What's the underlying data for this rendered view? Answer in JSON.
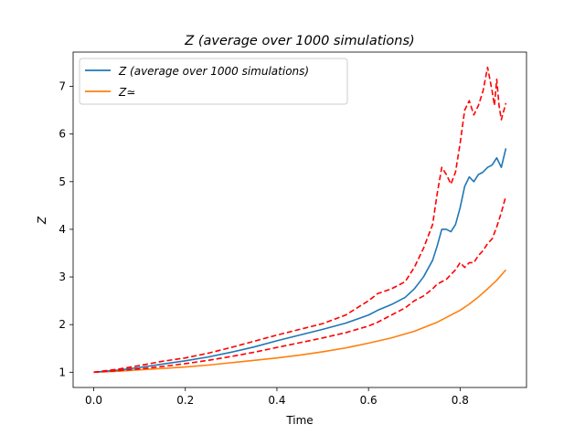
{
  "chart_data": {
    "type": "line",
    "title": "Z (average over 1000 simulations)",
    "xlabel": "Time",
    "ylabel": "Z",
    "xlim": [
      -0.045,
      0.945
    ],
    "ylim": [
      0.68,
      7.72
    ],
    "xticks": [
      0.0,
      0.2,
      0.4,
      0.6,
      0.8
    ],
    "yticks": [
      1,
      2,
      3,
      4,
      5,
      6,
      7
    ],
    "xtick_labels": [
      "0.0",
      "0.2",
      "0.4",
      "0.6",
      "0.8"
    ],
    "ytick_labels": [
      "1",
      "2",
      "3",
      "4",
      "5",
      "6",
      "7"
    ],
    "grid": false,
    "legend_position": "upper-left",
    "legend": [
      {
        "label": "Z (average over 1000 simulations)",
        "color": "#1f77b4"
      },
      {
        "label": "Z≃",
        "color": "#ff7f0e"
      }
    ],
    "series": [
      {
        "name": "Z (average over 1000 simulations)",
        "color": "#1f77b4",
        "style": "solid",
        "x": [
          0.0,
          0.05,
          0.1,
          0.15,
          0.2,
          0.25,
          0.3,
          0.35,
          0.4,
          0.45,
          0.5,
          0.55,
          0.6,
          0.62,
          0.65,
          0.68,
          0.7,
          0.72,
          0.74,
          0.75,
          0.76,
          0.77,
          0.78,
          0.79,
          0.8,
          0.81,
          0.82,
          0.83,
          0.84,
          0.85,
          0.86,
          0.87,
          0.88,
          0.89,
          0.9
        ],
        "y": [
          1.0,
          1.04,
          1.1,
          1.17,
          1.24,
          1.32,
          1.42,
          1.53,
          1.66,
          1.78,
          1.9,
          2.03,
          2.2,
          2.3,
          2.42,
          2.57,
          2.75,
          3.0,
          3.35,
          3.65,
          4.0,
          4.0,
          3.95,
          4.1,
          4.45,
          4.9,
          5.1,
          5.0,
          5.15,
          5.2,
          5.3,
          5.35,
          5.5,
          5.3,
          5.7
        ]
      },
      {
        "name": "Z≃",
        "color": "#ff7f0e",
        "style": "solid",
        "x": [
          0.0,
          0.05,
          0.1,
          0.15,
          0.2,
          0.25,
          0.3,
          0.35,
          0.4,
          0.45,
          0.5,
          0.55,
          0.6,
          0.65,
          0.7,
          0.75,
          0.8,
          0.82,
          0.84,
          0.86,
          0.88,
          0.9
        ],
        "y": [
          1.0,
          1.02,
          1.05,
          1.08,
          1.11,
          1.15,
          1.2,
          1.25,
          1.3,
          1.36,
          1.43,
          1.51,
          1.61,
          1.72,
          1.86,
          2.05,
          2.3,
          2.43,
          2.58,
          2.75,
          2.93,
          3.15
        ]
      },
      {
        "name": "",
        "color": "#ff0000",
        "style": "dashed",
        "x": [
          0.0,
          0.05,
          0.1,
          0.15,
          0.2,
          0.25,
          0.3,
          0.35,
          0.4,
          0.45,
          0.5,
          0.55,
          0.6,
          0.62,
          0.65,
          0.68,
          0.7,
          0.72,
          0.74,
          0.75,
          0.76,
          0.77,
          0.78,
          0.79,
          0.8,
          0.81,
          0.82,
          0.83,
          0.84,
          0.85,
          0.86,
          0.87,
          0.875,
          0.88,
          0.885,
          0.89,
          0.9
        ],
        "y": [
          1.0,
          1.06,
          1.14,
          1.23,
          1.3,
          1.4,
          1.52,
          1.65,
          1.78,
          1.9,
          2.02,
          2.2,
          2.5,
          2.65,
          2.75,
          2.9,
          3.2,
          3.6,
          4.1,
          4.75,
          5.3,
          5.15,
          4.95,
          5.2,
          5.8,
          6.5,
          6.7,
          6.4,
          6.6,
          6.9,
          7.4,
          6.9,
          6.6,
          7.15,
          6.6,
          6.3,
          6.65
        ]
      },
      {
        "name": "",
        "color": "#ff0000",
        "style": "dashed",
        "x": [
          0.0,
          0.05,
          0.1,
          0.15,
          0.2,
          0.25,
          0.3,
          0.35,
          0.4,
          0.45,
          0.5,
          0.55,
          0.6,
          0.62,
          0.65,
          0.68,
          0.7,
          0.72,
          0.74,
          0.75,
          0.76,
          0.77,
          0.78,
          0.79,
          0.8,
          0.81,
          0.82,
          0.83,
          0.84,
          0.85,
          0.86,
          0.87,
          0.88,
          0.89,
          0.9
        ],
        "y": [
          1.0,
          1.03,
          1.07,
          1.12,
          1.18,
          1.25,
          1.33,
          1.42,
          1.52,
          1.62,
          1.72,
          1.83,
          1.97,
          2.05,
          2.2,
          2.35,
          2.5,
          2.6,
          2.75,
          2.85,
          2.9,
          2.95,
          3.05,
          3.15,
          3.3,
          3.2,
          3.3,
          3.3,
          3.45,
          3.55,
          3.7,
          3.8,
          4.05,
          4.35,
          4.7
        ]
      }
    ]
  }
}
